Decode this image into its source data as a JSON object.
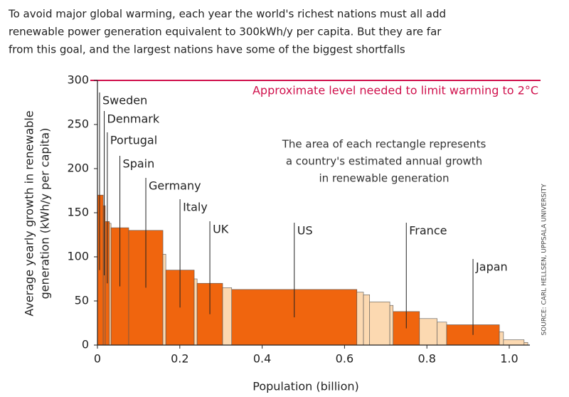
{
  "chart_data": {
    "type": "variwide-bar",
    "title_lines": [
      "To avoid major global warming, each year the world's richest nations must all add",
      "renewable power generation equivalent to 300kWh/y per capita. But they are far",
      "from this goal, and the largest nations have some of the biggest shortfalls"
    ],
    "ylabel_lines": [
      "Average yearly growth in renewable",
      "generation (kWh/y per capita)"
    ],
    "xlabel": "Population (billion)",
    "note_lines": [
      "The area of each rectangle represents",
      "a country's estimated annual growth",
      "in renewable generation"
    ],
    "source": "SOURCE: CARL HELLSEN, UPPSALA UNIVERSITY",
    "reference": {
      "value": 300,
      "label": "Approximate level needed to limit warming to 2°C",
      "color": "#d0104c"
    },
    "xlim": [
      0,
      1.05
    ],
    "ylim": [
      0,
      300
    ],
    "xticks": [
      0,
      0.2,
      0.4,
      0.6,
      0.8,
      {
        "value": 1,
        "label": "1.0"
      }
    ],
    "yticks": [
      0,
      50,
      100,
      150,
      200,
      250,
      300
    ],
    "bars": [
      {
        "name": "Sweden",
        "x": [
          0,
          0.014
        ],
        "value": 170,
        "color": "#f0650e"
      },
      {
        "name": "Denmark",
        "x": [
          0.014,
          0.019
        ],
        "value": 158,
        "color": "#f0650e"
      },
      {
        "name": "Portugal",
        "x": [
          0.019,
          0.029
        ],
        "value": 140,
        "color": "#f0650e"
      },
      {
        "x": [
          0.029,
          0.033
        ],
        "value": 138,
        "color": "#fcd9b1"
      },
      {
        "name": "Spain",
        "x": [
          0.033,
          0.076
        ],
        "value": 133,
        "color": "#f0650e"
      },
      {
        "name": "Germany",
        "x": [
          0.076,
          0.159
        ],
        "value": 130,
        "color": "#f0650e"
      },
      {
        "x": [
          0.159,
          0.166
        ],
        "value": 103,
        "color": "#fcd9b1"
      },
      {
        "name": "Italy",
        "x": [
          0.166,
          0.235
        ],
        "value": 85,
        "color": "#f0650e"
      },
      {
        "x": [
          0.235,
          0.242
        ],
        "value": 75,
        "color": "#fcd9b1"
      },
      {
        "name": "UK",
        "x": [
          0.242,
          0.304
        ],
        "value": 70,
        "color": "#f0650e"
      },
      {
        "x": [
          0.304,
          0.326
        ],
        "value": 65,
        "color": "#fcd9b1"
      },
      {
        "name": "US",
        "x": [
          0.326,
          0.63
        ],
        "value": 63,
        "color": "#f0650e"
      },
      {
        "x": [
          0.63,
          0.646
        ],
        "value": 60,
        "color": "#fcd9b1"
      },
      {
        "x": [
          0.646,
          0.661
        ],
        "value": 57,
        "color": "#fcd9b1"
      },
      {
        "x": [
          0.661,
          0.71
        ],
        "value": 49,
        "color": "#fcd9b1"
      },
      {
        "x": [
          0.71,
          0.718
        ],
        "value": 45,
        "color": "#fcd9b1"
      },
      {
        "name": "France",
        "x": [
          0.718,
          0.782
        ],
        "value": 38,
        "color": "#f0650e"
      },
      {
        "x": [
          0.782,
          0.825
        ],
        "value": 30,
        "color": "#fcd9b1"
      },
      {
        "x": [
          0.825,
          0.848
        ],
        "value": 26,
        "color": "#fcd9b1"
      },
      {
        "name": "Japan",
        "x": [
          0.848,
          0.976
        ],
        "value": 23,
        "color": "#f0650e"
      },
      {
        "x": [
          0.976,
          0.986
        ],
        "value": 15,
        "color": "#fcd9b1"
      },
      {
        "x": [
          0.986,
          1.036
        ],
        "value": 6,
        "color": "#fcd9b1"
      },
      {
        "x": [
          1.036,
          1.045
        ],
        "value": 3,
        "color": "#fcd9b1"
      }
    ]
  }
}
